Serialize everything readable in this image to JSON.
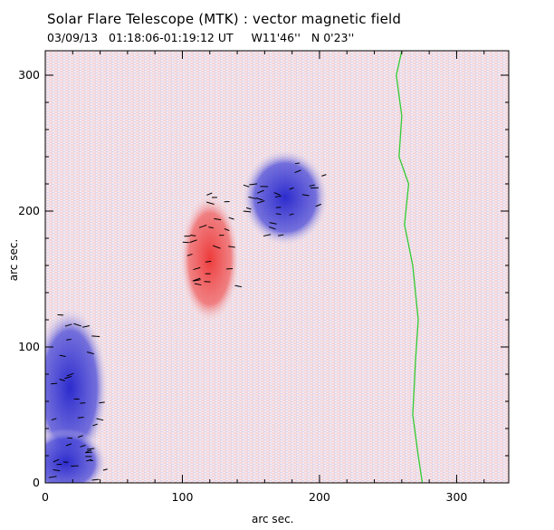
{
  "title": "Solar Flare Telescope (MTK) : vector magnetic field",
  "subtitle": "03/09/13   01:18:06-01:19:12 UT     W11'46''   N 0'23''",
  "colors": {
    "positive": "#ee3333",
    "negative": "#2b2bd6",
    "neutral_line": "#33cc33",
    "arrow": "#000000"
  },
  "chart_data": {
    "type": "heatmap",
    "title": "Solar Flare Telescope (MTK) : vector magnetic field",
    "xlabel": "arc sec.",
    "ylabel": "arc sec.",
    "xlim": [
      0,
      338
    ],
    "ylim": [
      0,
      318
    ],
    "x_ticks": [
      0,
      100,
      200,
      300
    ],
    "y_ticks": [
      0,
      100,
      200,
      300
    ],
    "x_tick_labels": [
      "0",
      "100",
      "200",
      "300"
    ],
    "y_tick_labels": [
      "0",
      "100",
      "200",
      "300"
    ],
    "polarity_regions": [
      {
        "name": "positive",
        "cx": 120,
        "cy": 165,
        "rx": 22,
        "ry": 48
      },
      {
        "name": "negative",
        "cx": 175,
        "cy": 210,
        "rx": 32,
        "ry": 36
      },
      {
        "name": "negative",
        "cx": 18,
        "cy": 70,
        "rx": 28,
        "ry": 60
      },
      {
        "name": "negative",
        "cx": 15,
        "cy": 15,
        "rx": 30,
        "ry": 25
      }
    ],
    "neutral_line": [
      [
        260,
        318
      ],
      [
        256,
        300
      ],
      [
        260,
        270
      ],
      [
        258,
        240
      ],
      [
        265,
        220
      ],
      [
        262,
        190
      ],
      [
        268,
        160
      ],
      [
        272,
        120
      ],
      [
        270,
        90
      ],
      [
        268,
        50
      ],
      [
        272,
        20
      ],
      [
        275,
        0
      ]
    ]
  }
}
